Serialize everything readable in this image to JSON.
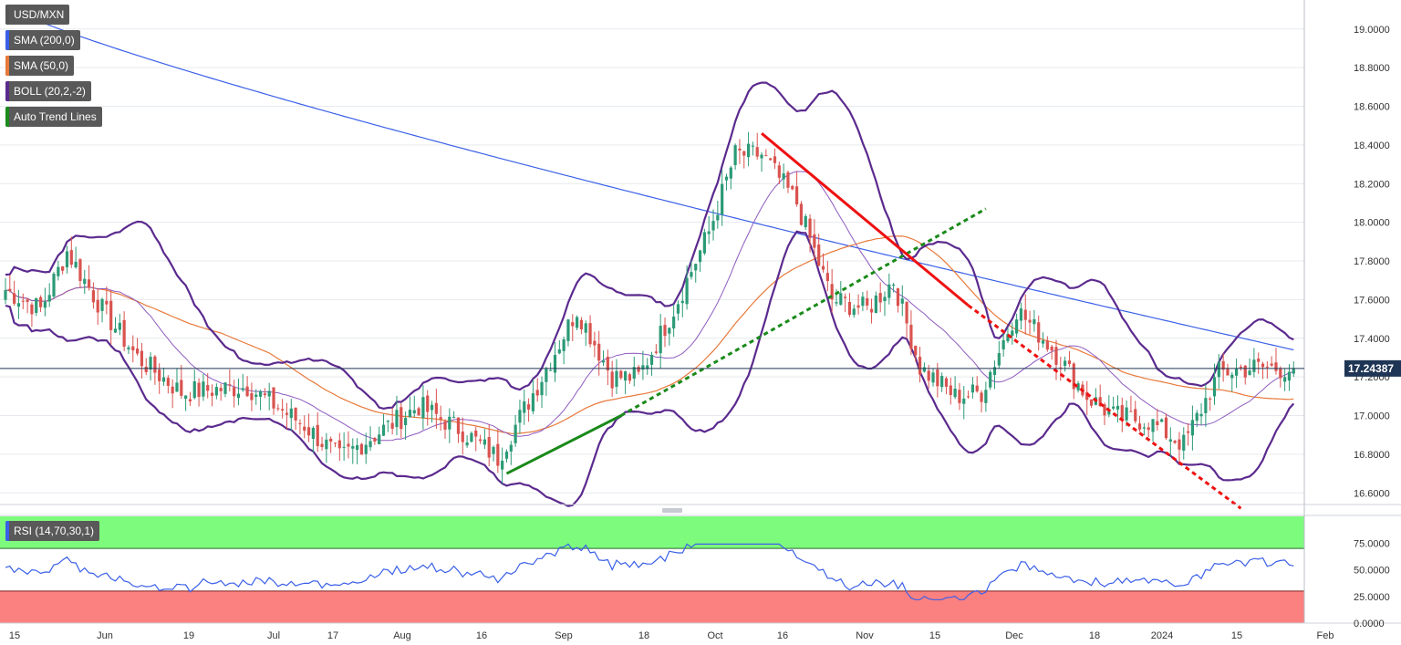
{
  "chart_data": [
    {
      "type": "candlestick",
      "symbol": "USD/MXN",
      "indicators": [
        {
          "name": "USD/MXN",
          "color": "#555555"
        },
        {
          "name": "SMA (200,0)",
          "color": "#3a5fe8"
        },
        {
          "name": "SMA (50,0)",
          "color": "#e8793a"
        },
        {
          "name": "BOLL (20,2,-2)",
          "color": "#5b2a8e"
        },
        {
          "name": "Auto Trend Lines",
          "color": "#1a8a1a"
        }
      ],
      "ylim": [
        16.54,
        19.15
      ],
      "y_ticks": [
        "19.0000",
        "18.8000",
        "18.6000",
        "18.4000",
        "18.2000",
        "18.0000",
        "17.8000",
        "17.6000",
        "17.4000",
        "17.2000",
        "17.0000",
        "16.8000",
        "16.6000"
      ],
      "x_ticks": [
        "15",
        "Jun",
        "19",
        "Jul",
        "17",
        "Aug",
        "16",
        "Sep",
        "18",
        "Oct",
        "16",
        "Nov",
        "15",
        "Dec",
        "18",
        "2024",
        "15",
        "Feb"
      ],
      "current_price": "17.24387",
      "current_price_value": 17.24387,
      "trend_lines": [
        {
          "name": "support-solid",
          "color": "#1a8a1a",
          "style": "solid",
          "from": [
            114,
            16.7
          ],
          "to": [
            140,
            17.0
          ]
        },
        {
          "name": "support-dotted",
          "color": "#1a8a1a",
          "style": "dotted",
          "from": [
            140,
            17.0
          ],
          "to": [
            223,
            18.07
          ]
        },
        {
          "name": "resistance-solid",
          "color": "#ee1111",
          "style": "solid",
          "from": [
            172,
            18.46
          ],
          "to": [
            219,
            17.57
          ]
        },
        {
          "name": "resistance-dotted",
          "color": "#ee1111",
          "style": "dotted",
          "from": [
            219,
            17.57
          ],
          "to": [
            281,
            16.52
          ]
        }
      ]
    },
    {
      "type": "line",
      "name": "RSI (14,70,30,1)",
      "ylim": [
        0,
        100
      ],
      "y_ticks": [
        "75.0000",
        "50.0000",
        "25.0000",
        "0.0000"
      ],
      "overbought": 70,
      "oversold": 30,
      "color": "#3a5fe8"
    }
  ]
}
